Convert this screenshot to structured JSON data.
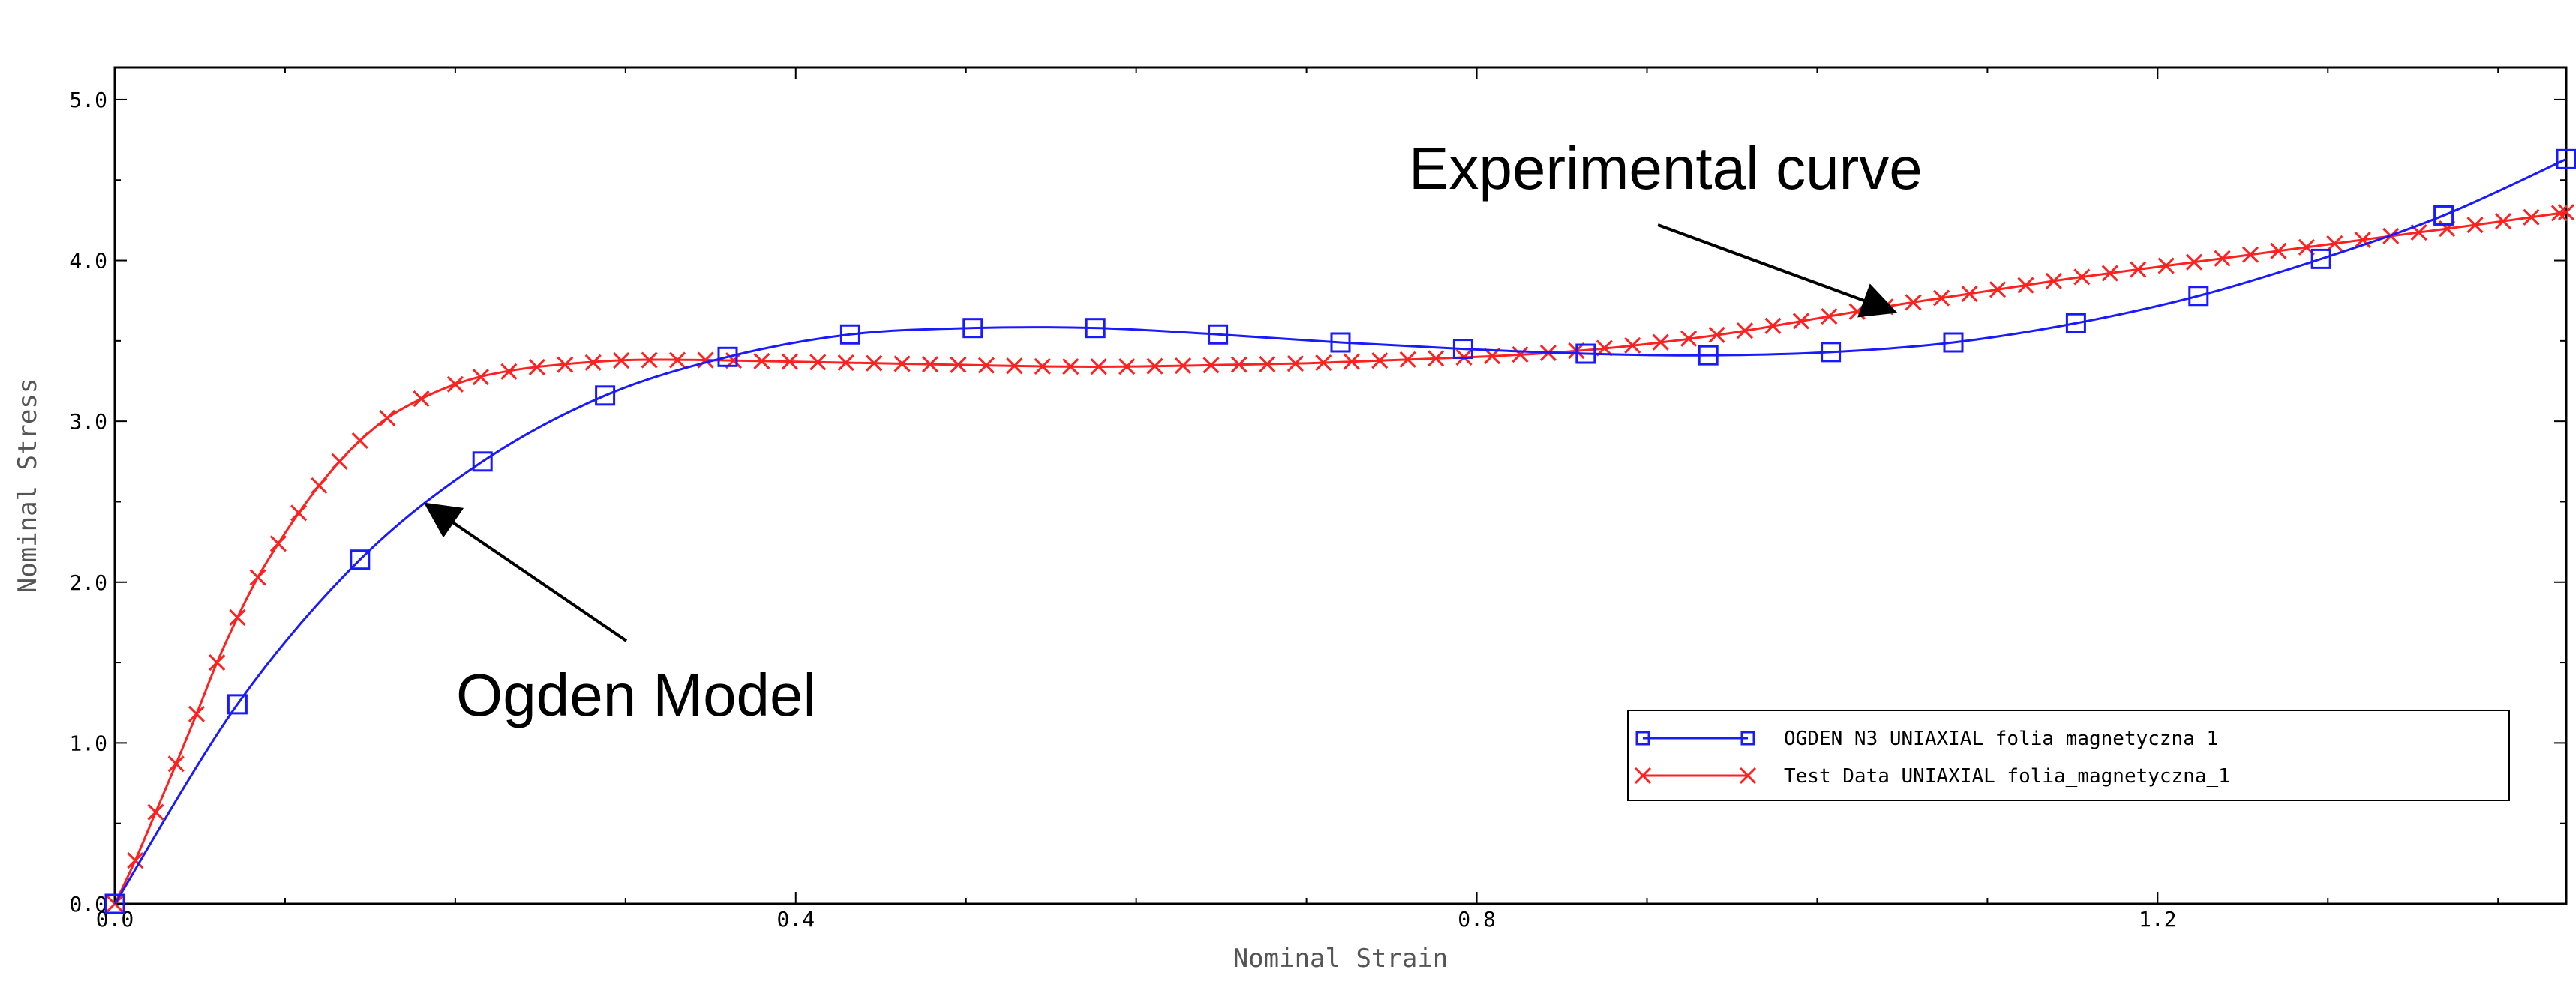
{
  "chart_data": {
    "type": "line",
    "title": "",
    "xlabel": "Nominal Strain",
    "ylabel": "Nominal Stress",
    "xlim": [
      0.0,
      1.44
    ],
    "ylim": [
      0.0,
      5.2
    ],
    "x_ticks": [
      0.0,
      0.4,
      0.8,
      1.2
    ],
    "x_tick_labels": [
      "0.0",
      "0.4",
      "0.8",
      "1.2"
    ],
    "y_ticks": [
      0.0,
      1.0,
      2.0,
      3.0,
      4.0,
      5.0
    ],
    "y_tick_labels": [
      "0.0",
      "1.0",
      "2.0",
      "3.0",
      "4.0",
      "5.0"
    ],
    "grid": false,
    "legend_position": "bottom-right",
    "series": [
      {
        "name": "OGDEN_N3 UNIAXIAL folia_magnetyczna_1",
        "color": "#1a1aff",
        "marker": "square",
        "x": [
          0.0,
          0.072,
          0.144,
          0.216,
          0.288,
          0.36,
          0.432,
          0.504,
          0.576,
          0.648,
          0.72,
          0.792,
          0.864,
          0.936,
          1.008,
          1.08,
          1.152,
          1.224,
          1.296,
          1.368,
          1.44
        ],
        "y": [
          0.0,
          1.24,
          2.14,
          2.75,
          3.16,
          3.4,
          3.54,
          3.58,
          3.58,
          3.54,
          3.49,
          3.45,
          3.42,
          3.41,
          3.43,
          3.49,
          3.61,
          3.78,
          4.01,
          4.28,
          4.63
        ]
      },
      {
        "name": "Test Data UNIAXIAL folia_magnetyczna_1",
        "color": "#ff2020",
        "marker": "x",
        "x": [
          0.0,
          0.012,
          0.024,
          0.036,
          0.048,
          0.06,
          0.072,
          0.084,
          0.096,
          0.108,
          0.12,
          0.132,
          0.144,
          0.16,
          0.18,
          0.2,
          0.22,
          0.25,
          0.3,
          0.35,
          0.4,
          0.45,
          0.5,
          0.55,
          0.6,
          0.65,
          0.7,
          0.75,
          0.8,
          0.85,
          0.9,
          0.95,
          1.0,
          1.05,
          1.1,
          1.15,
          1.2,
          1.25,
          1.3,
          1.35,
          1.4,
          1.44
        ],
        "y": [
          0.0,
          0.27,
          0.57,
          0.87,
          1.18,
          1.5,
          1.78,
          2.03,
          2.24,
          2.43,
          2.6,
          2.75,
          2.88,
          3.02,
          3.14,
          3.23,
          3.29,
          3.34,
          3.38,
          3.38,
          3.37,
          3.36,
          3.35,
          3.34,
          3.34,
          3.35,
          3.36,
          3.38,
          3.4,
          3.43,
          3.48,
          3.55,
          3.64,
          3.73,
          3.81,
          3.89,
          3.96,
          4.03,
          4.1,
          4.17,
          4.24,
          4.3
        ]
      }
    ],
    "annotations": [
      {
        "text": "Experimental curve",
        "target_x": 1.05,
        "target_y": 3.65
      },
      {
        "text": "Ogden Model",
        "target_x": 0.18,
        "target_y": 2.52
      }
    ]
  }
}
